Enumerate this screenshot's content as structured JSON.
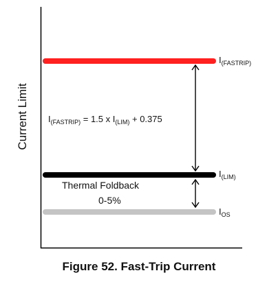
{
  "diagram": {
    "y_axis_label": "Current Limit",
    "levels": [
      {
        "id": "fastrip",
        "label_main": "I",
        "label_sub": "(FASTRIP)",
        "color": "#ff2020"
      },
      {
        "id": "lim",
        "label_main": "I",
        "label_sub": "(LIM)",
        "color": "#000000"
      },
      {
        "id": "os",
        "label_main": "I",
        "label_sub": "OS",
        "color": "#c0c0c0"
      }
    ],
    "formula": {
      "prefix": "I",
      "sub1": "(FASTRIP)",
      "middle": " = 1.5 x I",
      "sub2": "(LIM)",
      "suffix": " + 0.375"
    },
    "thermal_foldback": {
      "line1": "Thermal Foldback",
      "line2": "0-5%"
    },
    "caption": "Figure 52.  Fast-Trip Current"
  }
}
